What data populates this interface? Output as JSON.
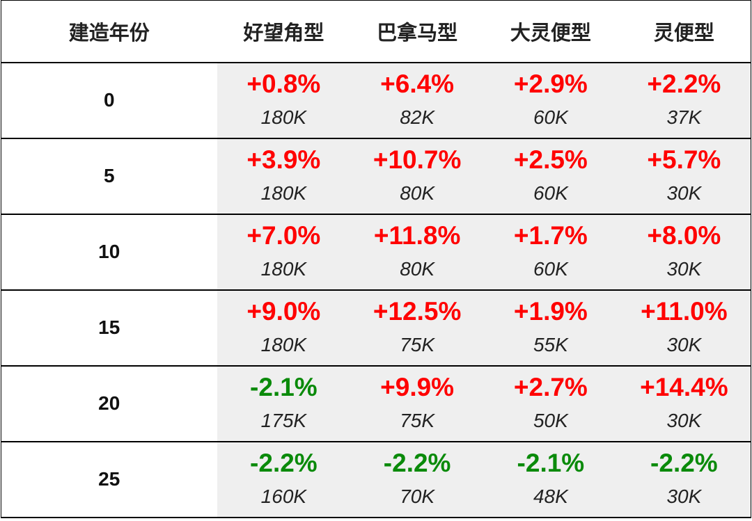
{
  "headers": [
    "建造年份",
    "好望角型",
    "巴拿马型",
    "大灵便型",
    "灵便型"
  ],
  "rows": [
    {
      "year": "0",
      "cells": [
        {
          "pct": "+0.8%",
          "dir": "up",
          "amount": "180K"
        },
        {
          "pct": "+6.4%",
          "dir": "up",
          "amount": "82K"
        },
        {
          "pct": "+2.9%",
          "dir": "up",
          "amount": "60K"
        },
        {
          "pct": "+2.2%",
          "dir": "up",
          "amount": "37K"
        }
      ]
    },
    {
      "year": "5",
      "cells": [
        {
          "pct": "+3.9%",
          "dir": "up",
          "amount": "180K"
        },
        {
          "pct": "+10.7%",
          "dir": "up",
          "amount": "80K"
        },
        {
          "pct": "+2.5%",
          "dir": "up",
          "amount": "60K"
        },
        {
          "pct": "+5.7%",
          "dir": "up",
          "amount": "30K"
        }
      ]
    },
    {
      "year": "10",
      "cells": [
        {
          "pct": "+7.0%",
          "dir": "up",
          "amount": "180K"
        },
        {
          "pct": "+11.8%",
          "dir": "up",
          "amount": "80K"
        },
        {
          "pct": "+1.7%",
          "dir": "up",
          "amount": "60K"
        },
        {
          "pct": "+8.0%",
          "dir": "up",
          "amount": "30K"
        }
      ]
    },
    {
      "year": "15",
      "cells": [
        {
          "pct": "+9.0%",
          "dir": "up",
          "amount": "180K"
        },
        {
          "pct": "+12.5%",
          "dir": "up",
          "amount": "75K"
        },
        {
          "pct": "+1.9%",
          "dir": "up",
          "amount": "55K"
        },
        {
          "pct": "+11.0%",
          "dir": "up",
          "amount": "30K"
        }
      ]
    },
    {
      "year": "20",
      "cells": [
        {
          "pct": "-2.1%",
          "dir": "down",
          "amount": "175K"
        },
        {
          "pct": "+9.9%",
          "dir": "up",
          "amount": "75K"
        },
        {
          "pct": "+2.7%",
          "dir": "up",
          "amount": "50K"
        },
        {
          "pct": "+14.4%",
          "dir": "up",
          "amount": "30K"
        }
      ]
    },
    {
      "year": "25",
      "cells": [
        {
          "pct": "-2.2%",
          "dir": "down",
          "amount": "160K"
        },
        {
          "pct": "-2.2%",
          "dir": "down",
          "amount": "70K"
        },
        {
          "pct": "-2.1%",
          "dir": "down",
          "amount": "48K"
        },
        {
          "pct": "-2.2%",
          "dir": "down",
          "amount": "30K"
        }
      ]
    }
  ],
  "colors": {
    "up": "#ff0000",
    "down": "#0a8a0a",
    "cell_bg": "#efefef"
  }
}
